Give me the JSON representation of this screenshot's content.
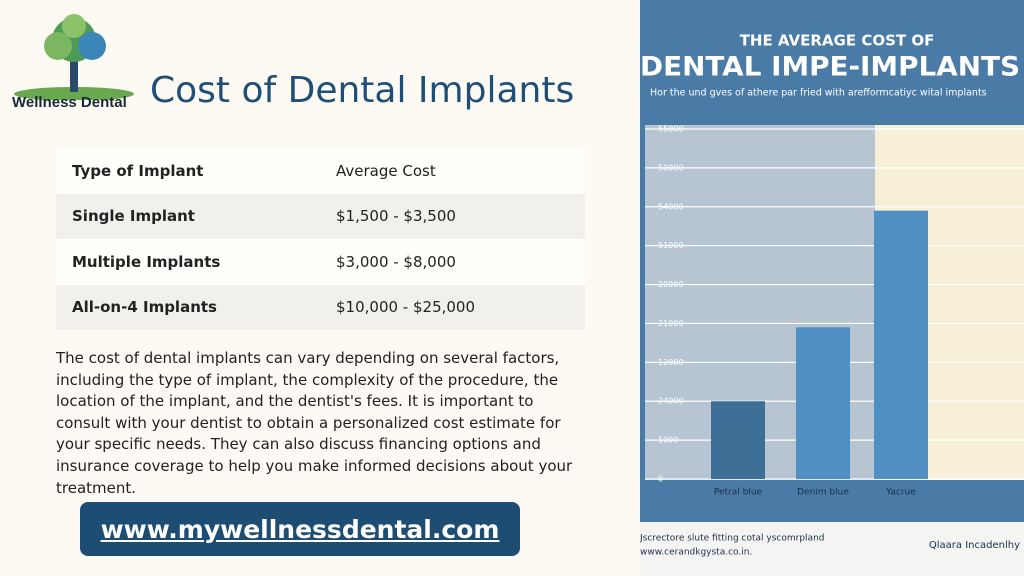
{
  "logo": {
    "text": "Wellness Dental"
  },
  "title": "Cost of Dental Implants",
  "table": {
    "header": [
      "Type of Implant",
      "Average Cost"
    ],
    "rows": [
      [
        "Single Implant",
        "$1,500 - $3,500"
      ],
      [
        "Multiple Implants",
        "$3,000 - $8,000"
      ],
      [
        "All-on-4 Implants",
        "$10,000 - $25,000"
      ]
    ]
  },
  "paragraph": "The cost of dental implants can vary depending on several factors, including the type of implant, the complexity of the procedure, the location of the implant, and the dentist's fees. It is important to consult with your dentist to obtain a personalized cost estimate for your specific needs. They can also discuss financing options and insurance coverage to help you make informed decisions about your treatment.",
  "button": "www.mywellnessdental.com",
  "chart_data": {
    "type": "bar",
    "title": "THE AVERAGE COST OF",
    "subtitle": "DENTAL IMPE-IMPLANTS",
    "caption": "Hor the und gves of athere par fried with arefformcatiyc wital implants",
    "categories": [
      "Petral blue",
      "Denim blue",
      "Yacrue"
    ],
    "values": [
      2,
      3.9,
      6.9
    ],
    "colors": [
      "#3d6e95",
      "#4f8fc2",
      "#4f8fc2"
    ],
    "ylim": [
      0,
      9
    ],
    "yticks": [
      0,
      {
        "value": 1,
        "label": "1000"
      },
      {
        "value": 2,
        "label": "24000"
      },
      {
        "value": 3,
        "label": "12000"
      },
      {
        "value": 4,
        "label": "21000"
      },
      {
        "value": 5,
        "label": "20000"
      },
      {
        "value": 6,
        "label": "51000"
      },
      {
        "value": 7,
        "label": "54000"
      },
      {
        "value": 8,
        "label": "50000"
      },
      {
        "value": 9,
        "label": "55000"
      }
    ],
    "grid": true,
    "footer": [
      "Jscrectore slute fitting cotal yscomrpland",
      "www.cerandkgysta.co.in."
    ],
    "brand": "Qlaara Incadenlhy"
  }
}
